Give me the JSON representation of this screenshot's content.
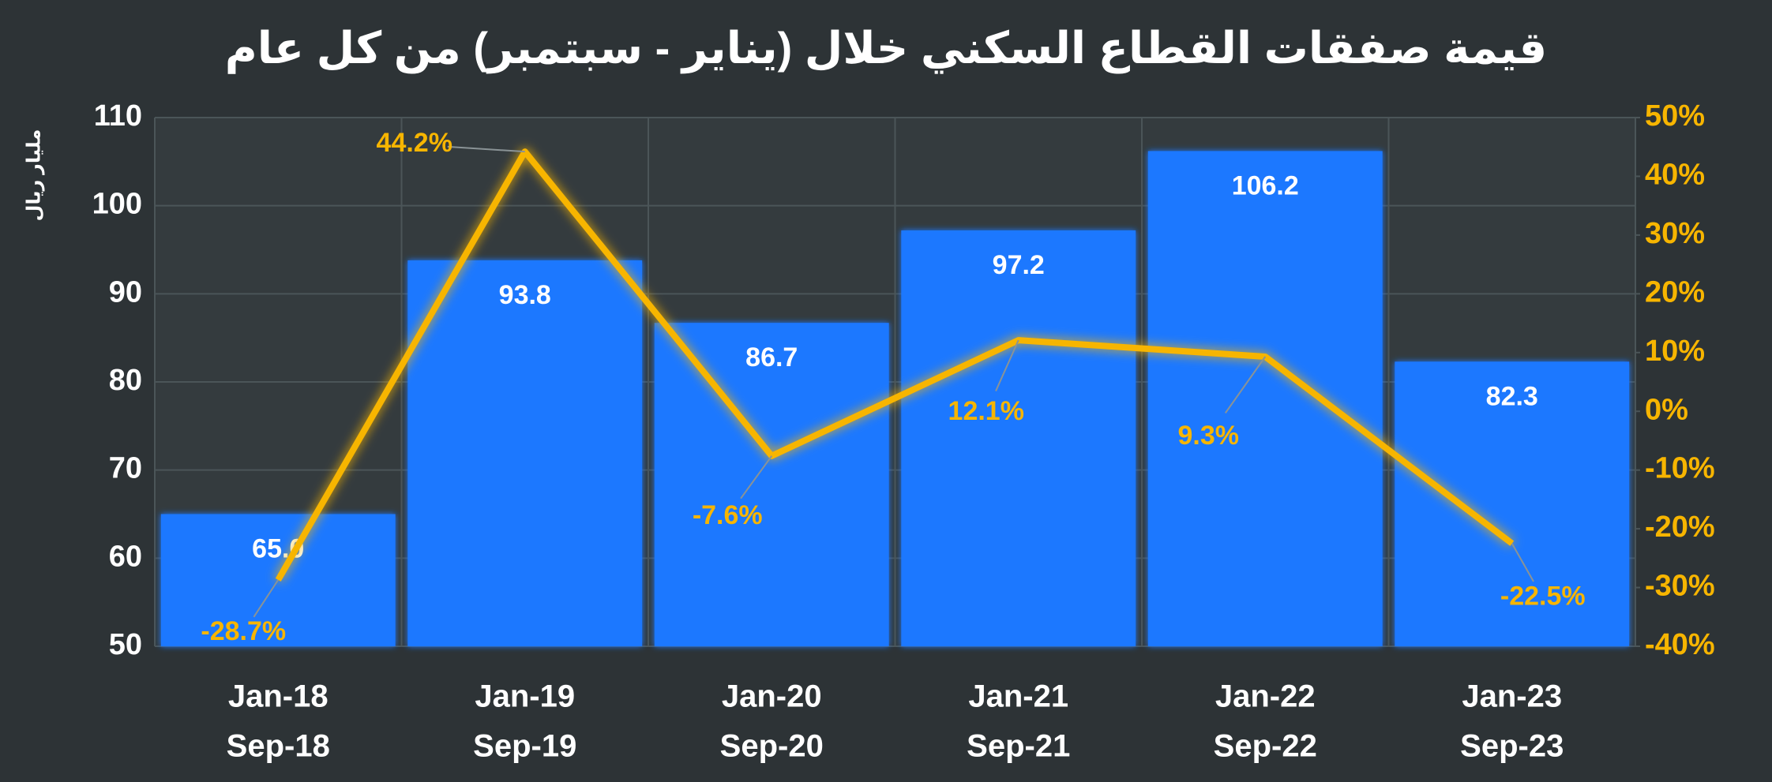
{
  "chart_data": {
    "type": "bar_line",
    "title": "قيمة صفقات القطاع السكني خلال (يناير - سبتمبر) من كل عام",
    "y_label": "مليار ريال",
    "categories": [
      [
        "Jan-18",
        "Sep-18"
      ],
      [
        "Jan-19",
        "Sep-19"
      ],
      [
        "Jan-20",
        "Sep-20"
      ],
      [
        "Jan-21",
        "Sep-21"
      ],
      [
        "Jan-22",
        "Sep-22"
      ],
      [
        "Jan-23",
        "Sep-23"
      ]
    ],
    "series": [
      {
        "type": "bar",
        "color": "#1f78ff",
        "values": [
          65.0,
          93.8,
          86.7,
          97.2,
          106.2,
          82.3
        ],
        "value_labels": [
          "65.0",
          "93.8",
          "86.7",
          "97.2",
          "106.2",
          "82.3"
        ]
      },
      {
        "type": "line",
        "axis": "y2",
        "color": "#f7b500",
        "values": [
          -28.7,
          44.2,
          -7.6,
          12.1,
          9.3,
          -22.5
        ],
        "value_labels": [
          "-28.7%",
          "44.2%",
          "-7.6%",
          "12.1%",
          "9.3%",
          "-22.5%"
        ]
      }
    ],
    "ylim": [
      50,
      110
    ],
    "yticks": [
      50,
      60,
      70,
      80,
      90,
      100,
      110
    ],
    "y2lim": [
      -40,
      50
    ],
    "y2ticks": [
      {
        "value": -40,
        "label": "-40%"
      },
      {
        "value": -30,
        "label": "-30%"
      },
      {
        "value": -20,
        "label": "-20%"
      },
      {
        "value": -10,
        "label": "-10%"
      },
      {
        "value": 0,
        "label": "0%"
      },
      {
        "value": 10,
        "label": "10%"
      },
      {
        "value": 20,
        "label": "20%"
      },
      {
        "value": 30,
        "label": "30%"
      },
      {
        "value": 40,
        "label": "40%"
      },
      {
        "value": 50,
        "label": "50%"
      }
    ],
    "grid": true
  }
}
